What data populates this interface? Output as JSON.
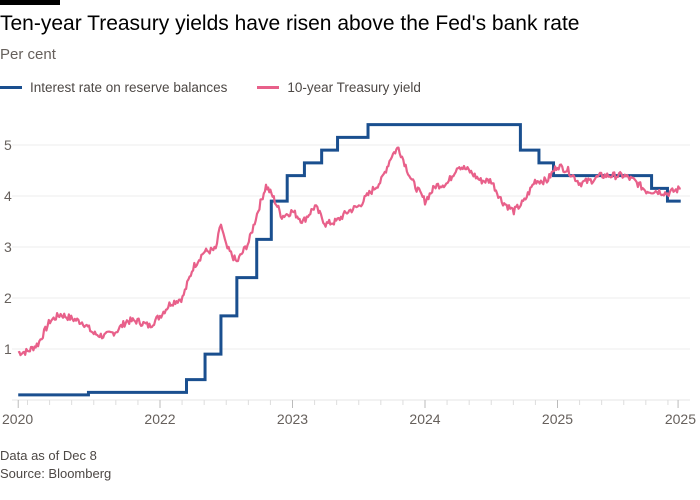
{
  "title": "Ten-year Treasury yields have risen above the Fed's bank rate",
  "subtitle": "Per cent",
  "footnote": "Data as of Dec 8",
  "source": "Source: Bloomberg",
  "chart_data": {
    "type": "line",
    "title": "Ten-year Treasury yields have risen above the Fed's bank rate",
    "ylabel": "Per cent",
    "ylim": [
      0,
      5.6
    ],
    "yticks": [
      1,
      2,
      3,
      4,
      5
    ],
    "xlim": [
      2020.93,
      2025.93
    ],
    "xticks": [
      {
        "x": 2020.93,
        "label": "2020"
      },
      {
        "x": 2022.0,
        "label": "2022"
      },
      {
        "x": 2023.0,
        "label": "2023"
      },
      {
        "x": 2024.0,
        "label": "2024"
      },
      {
        "x": 2025.0,
        "label": "2025"
      },
      {
        "x": 2025.91,
        "label": "2025"
      }
    ],
    "grid": true,
    "legend_position": "top-left",
    "series": [
      {
        "name": "Interest rate on reserve balances",
        "color": "#1a4f8f",
        "step": true,
        "points": [
          [
            2020.93,
            0.1
          ],
          [
            2021.46,
            0.15
          ],
          [
            2022.2,
            0.4
          ],
          [
            2022.34,
            0.9
          ],
          [
            2022.46,
            1.65
          ],
          [
            2022.58,
            2.4
          ],
          [
            2022.73,
            3.15
          ],
          [
            2022.84,
            3.9
          ],
          [
            2022.96,
            4.4
          ],
          [
            2023.09,
            4.65
          ],
          [
            2023.22,
            4.9
          ],
          [
            2023.34,
            5.15
          ],
          [
            2023.57,
            5.4
          ],
          [
            2024.72,
            4.9
          ],
          [
            2024.86,
            4.65
          ],
          [
            2024.97,
            4.4
          ],
          [
            2025.71,
            4.15
          ],
          [
            2025.83,
            3.9
          ],
          [
            2025.93,
            3.9
          ]
        ]
      },
      {
        "name": "10-year Treasury yield",
        "color": "#e8608a",
        "step": false,
        "points": [
          [
            2020.93,
            0.93
          ],
          [
            2021.0,
            0.95
          ],
          [
            2021.08,
            1.1
          ],
          [
            2021.17,
            1.55
          ],
          [
            2021.25,
            1.68
          ],
          [
            2021.33,
            1.6
          ],
          [
            2021.42,
            1.52
          ],
          [
            2021.5,
            1.3
          ],
          [
            2021.58,
            1.25
          ],
          [
            2021.67,
            1.35
          ],
          [
            2021.75,
            1.55
          ],
          [
            2021.83,
            1.55
          ],
          [
            2021.92,
            1.45
          ],
          [
            2022.0,
            1.65
          ],
          [
            2022.08,
            1.9
          ],
          [
            2022.17,
            2.0
          ],
          [
            2022.25,
            2.6
          ],
          [
            2022.33,
            2.9
          ],
          [
            2022.42,
            2.95
          ],
          [
            2022.46,
            3.45
          ],
          [
            2022.5,
            3.0
          ],
          [
            2022.58,
            2.7
          ],
          [
            2022.67,
            3.1
          ],
          [
            2022.75,
            3.8
          ],
          [
            2022.8,
            4.2
          ],
          [
            2022.85,
            4.0
          ],
          [
            2022.92,
            3.6
          ],
          [
            2023.0,
            3.7
          ],
          [
            2023.08,
            3.5
          ],
          [
            2023.17,
            3.8
          ],
          [
            2023.25,
            3.45
          ],
          [
            2023.33,
            3.5
          ],
          [
            2023.42,
            3.7
          ],
          [
            2023.5,
            3.8
          ],
          [
            2023.58,
            4.05
          ],
          [
            2023.67,
            4.3
          ],
          [
            2023.75,
            4.8
          ],
          [
            2023.8,
            4.95
          ],
          [
            2023.9,
            4.3
          ],
          [
            2024.0,
            3.9
          ],
          [
            2024.08,
            4.2
          ],
          [
            2024.17,
            4.25
          ],
          [
            2024.25,
            4.6
          ],
          [
            2024.33,
            4.5
          ],
          [
            2024.42,
            4.3
          ],
          [
            2024.5,
            4.3
          ],
          [
            2024.58,
            3.9
          ],
          [
            2024.67,
            3.7
          ],
          [
            2024.75,
            3.9
          ],
          [
            2024.83,
            4.3
          ],
          [
            2024.92,
            4.3
          ],
          [
            2025.0,
            4.6
          ],
          [
            2025.08,
            4.5
          ],
          [
            2025.17,
            4.25
          ],
          [
            2025.25,
            4.3
          ],
          [
            2025.33,
            4.4
          ],
          [
            2025.42,
            4.4
          ],
          [
            2025.5,
            4.4
          ],
          [
            2025.58,
            4.3
          ],
          [
            2025.67,
            4.1
          ],
          [
            2025.75,
            4.1
          ],
          [
            2025.83,
            4.05
          ],
          [
            2025.93,
            4.15
          ]
        ]
      }
    ]
  }
}
